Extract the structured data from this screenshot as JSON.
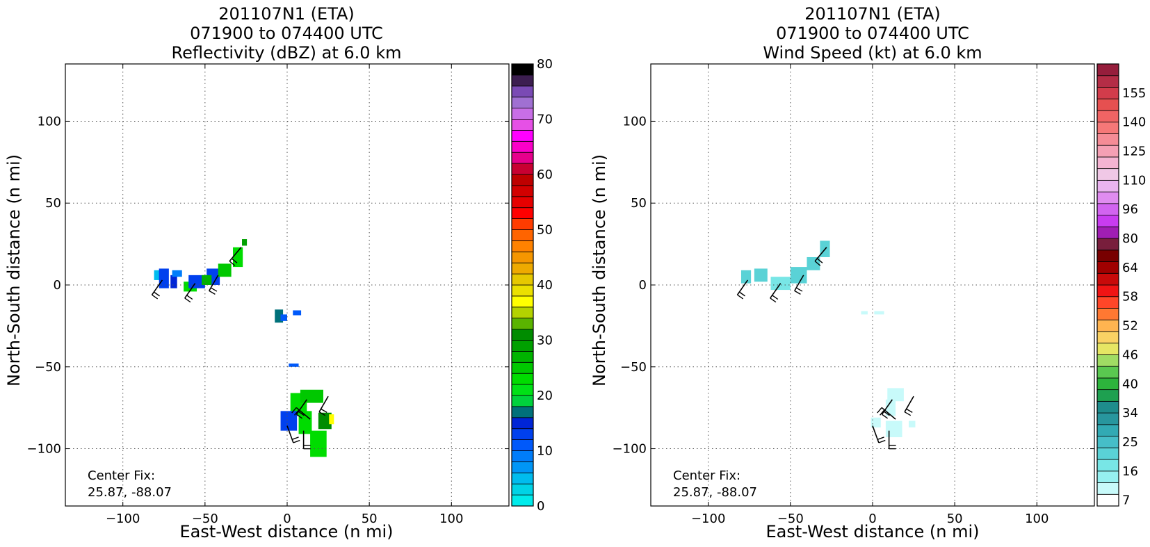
{
  "panels": [
    {
      "id": "reflectivity",
      "title_lines": [
        "201107N1 (ETA)",
        "071900 to 074400 UTC",
        "Reflectivity (dBZ) at 6.0 km"
      ],
      "xlabel": "East-West distance (n mi)",
      "ylabel": "North-South distance (n mi)",
      "center_fix_label": "Center Fix:",
      "center_fix_value": "25.87, -88.07",
      "colorbar_ticks": [
        "0",
        "10",
        "20",
        "30",
        "40",
        "50",
        "60",
        "70",
        "80"
      ],
      "colorbar_colors": [
        "#00ebeb",
        "#00d3e6",
        "#00bcee",
        "#0096f6",
        "#007dfa",
        "#0059fa",
        "#0040ee",
        "#0025d6",
        "#00717a",
        "#00d23c",
        "#00e116",
        "#00dc00",
        "#00c800",
        "#00b400",
        "#00a000",
        "#008c00",
        "#5ab400",
        "#b4d200",
        "#ffff00",
        "#ebe000",
        "#e6c800",
        "#eeaa00",
        "#f59600",
        "#ff8200",
        "#ff6400",
        "#ff3c00",
        "#ff0000",
        "#e60000",
        "#d20000",
        "#be0000",
        "#c80032",
        "#e6008c",
        "#fa00c8",
        "#ff00ff",
        "#e650e6",
        "#c86ee6",
        "#a070d2",
        "#7a4ab4",
        "#3c1e50",
        "#000000"
      ]
    },
    {
      "id": "windspeed",
      "title_lines": [
        "201107N1 (ETA)",
        "071900 to 074400 UTC",
        "Wind Speed (kt) at 6.0 km"
      ],
      "xlabel": "East-West distance (n mi)",
      "ylabel": "North-South distance (n mi)",
      "center_fix_label": "Center Fix:",
      "center_fix_value": "25.87, -88.07",
      "colorbar_ticks": [
        "7",
        "16",
        "25",
        "34",
        "40",
        "46",
        "52",
        "58",
        "64",
        "80",
        "96",
        "110",
        "125",
        "140",
        "155"
      ],
      "colorbar_colors": [
        "#ffffff",
        "#c8fafa",
        "#96f0f0",
        "#78e6e6",
        "#5ad2d6",
        "#46bec8",
        "#32aab4",
        "#28969e",
        "#1e8c8c",
        "#1ea050",
        "#2db43c",
        "#5ac850",
        "#a0dc64",
        "#e6e664",
        "#fad264",
        "#ffb450",
        "#ff7832",
        "#ff4628",
        "#f01414",
        "#c80a0a",
        "#a00000",
        "#780000",
        "#781e3c",
        "#a01eb4",
        "#c83cf0",
        "#d264f0",
        "#e08cf0",
        "#eab4f0",
        "#f0c8e6",
        "#f5b4d2",
        "#f5a0b4",
        "#f58c96",
        "#f57878",
        "#f06464",
        "#e65050",
        "#d23c4b",
        "#b42d46",
        "#961e3c"
      ]
    }
  ],
  "chart_data": [
    {
      "type": "heatmap",
      "title": "201107N1 (ETA) 071900 to 074400 UTC Reflectivity (dBZ) at 6.0 km",
      "xlabel": "East-West distance (n mi)",
      "ylabel": "North-South distance (n mi)",
      "xlim": [
        -135,
        135
      ],
      "ylim": [
        -135,
        135
      ],
      "xticks": [
        "-100",
        "-50",
        "0",
        "50",
        "100"
      ],
      "yticks": [
        "-100",
        "-50",
        "0",
        "50",
        "100"
      ],
      "grid": true,
      "colorbar": {
        "label": "dBZ",
        "min": 0,
        "max": 80,
        "step": 2
      },
      "cells": [
        {
          "x": -79,
          "y": 6,
          "w": 4,
          "h": 6,
          "v": 5
        },
        {
          "x": -75,
          "y": 4,
          "w": 6,
          "h": 12,
          "v": 12
        },
        {
          "x": -69,
          "y": 2,
          "w": 4,
          "h": 8,
          "v": 14
        },
        {
          "x": -67,
          "y": 7,
          "w": 6,
          "h": 4,
          "v": 8
        },
        {
          "x": -59,
          "y": -1,
          "w": 8,
          "h": 6,
          "v": 22
        },
        {
          "x": -55,
          "y": 2,
          "w": 10,
          "h": 8,
          "v": 12
        },
        {
          "x": -45,
          "y": 5,
          "w": 8,
          "h": 10,
          "v": 12
        },
        {
          "x": -49,
          "y": 3,
          "w": 6,
          "h": 6,
          "v": 26
        },
        {
          "x": -38,
          "y": 9,
          "w": 8,
          "h": 8,
          "v": 24
        },
        {
          "x": -30,
          "y": 17,
          "w": 6,
          "h": 12,
          "v": 22
        },
        {
          "x": -26,
          "y": 26,
          "w": 3,
          "h": 4,
          "v": 28
        },
        {
          "x": -5,
          "y": -19,
          "w": 5,
          "h": 8,
          "v": 16
        },
        {
          "x": -2,
          "y": -20,
          "w": 4,
          "h": 4,
          "v": 10
        },
        {
          "x": 6,
          "y": -17,
          "w": 5,
          "h": 3,
          "v": 10
        },
        {
          "x": 4,
          "y": -49,
          "w": 6,
          "h": 2,
          "v": 10
        },
        {
          "x": 7,
          "y": -73,
          "w": 10,
          "h": 14,
          "v": 22
        },
        {
          "x": 15,
          "y": -68,
          "w": 14,
          "h": 8,
          "v": 24
        },
        {
          "x": 1,
          "y": -83,
          "w": 10,
          "h": 12,
          "v": 12
        },
        {
          "x": 11,
          "y": -84,
          "w": 8,
          "h": 14,
          "v": 22
        },
        {
          "x": 23,
          "y": -83,
          "w": 8,
          "h": 10,
          "v": 30
        },
        {
          "x": 27,
          "y": -82,
          "w": 3,
          "h": 6,
          "v": 36
        },
        {
          "x": 19,
          "y": -97,
          "w": 10,
          "h": 16,
          "v": 22
        }
      ]
    },
    {
      "type": "heatmap",
      "title": "201107N1 (ETA) 071900 to 074400 UTC Wind Speed (kt) at 6.0 km",
      "xlabel": "East-West distance (n mi)",
      "ylabel": "North-South distance (n mi)",
      "xlim": [
        -135,
        135
      ],
      "ylim": [
        -135,
        135
      ],
      "xticks": [
        "-100",
        "-50",
        "0",
        "50",
        "100"
      ],
      "yticks": [
        "-100",
        "-50",
        "0",
        "50",
        "100"
      ],
      "grid": true,
      "colorbar": {
        "label": "kt",
        "min": 7,
        "max": 157
      },
      "cells": [
        {
          "x": -77,
          "y": 5,
          "w": 6,
          "h": 8,
          "v": 25
        },
        {
          "x": -68,
          "y": 6,
          "w": 8,
          "h": 8,
          "v": 25
        },
        {
          "x": -56,
          "y": 1,
          "w": 12,
          "h": 8,
          "v": 22
        },
        {
          "x": -45,
          "y": 6,
          "w": 10,
          "h": 10,
          "v": 25
        },
        {
          "x": -36,
          "y": 13,
          "w": 8,
          "h": 8,
          "v": 25
        },
        {
          "x": -29,
          "y": 22,
          "w": 6,
          "h": 10,
          "v": 25
        },
        {
          "x": -5,
          "y": -17,
          "w": 4,
          "h": 2,
          "v": 12
        },
        {
          "x": 4,
          "y": -17,
          "w": 6,
          "h": 2,
          "v": 12
        },
        {
          "x": 3,
          "y": -49,
          "w": 2,
          "h": 2,
          "v": 10
        },
        {
          "x": 14,
          "y": -67,
          "w": 10,
          "h": 8,
          "v": 14
        },
        {
          "x": 11,
          "y": -75,
          "w": 6,
          "h": 10,
          "v": 14
        },
        {
          "x": 2,
          "y": -84,
          "w": 6,
          "h": 6,
          "v": 12
        },
        {
          "x": 13,
          "y": -88,
          "w": 10,
          "h": 10,
          "v": 14
        },
        {
          "x": 24,
          "y": -85,
          "w": 4,
          "h": 4,
          "v": 12
        }
      ]
    }
  ],
  "wind_barbs": [
    {
      "x": -76,
      "y": 3,
      "angle": 235
    },
    {
      "x": -56,
      "y": 1,
      "angle": 235
    },
    {
      "x": -42,
      "y": 6,
      "angle": 240
    },
    {
      "x": -28,
      "y": 23,
      "angle": 230
    },
    {
      "x": 12,
      "y": -70,
      "angle": 235
    },
    {
      "x": 25,
      "y": -68,
      "angle": 240
    },
    {
      "x": 0,
      "y": -86,
      "angle": 290
    },
    {
      "x": 10,
      "y": -89,
      "angle": 270
    },
    {
      "x": 14,
      "y": -82,
      "angle": 140
    }
  ]
}
